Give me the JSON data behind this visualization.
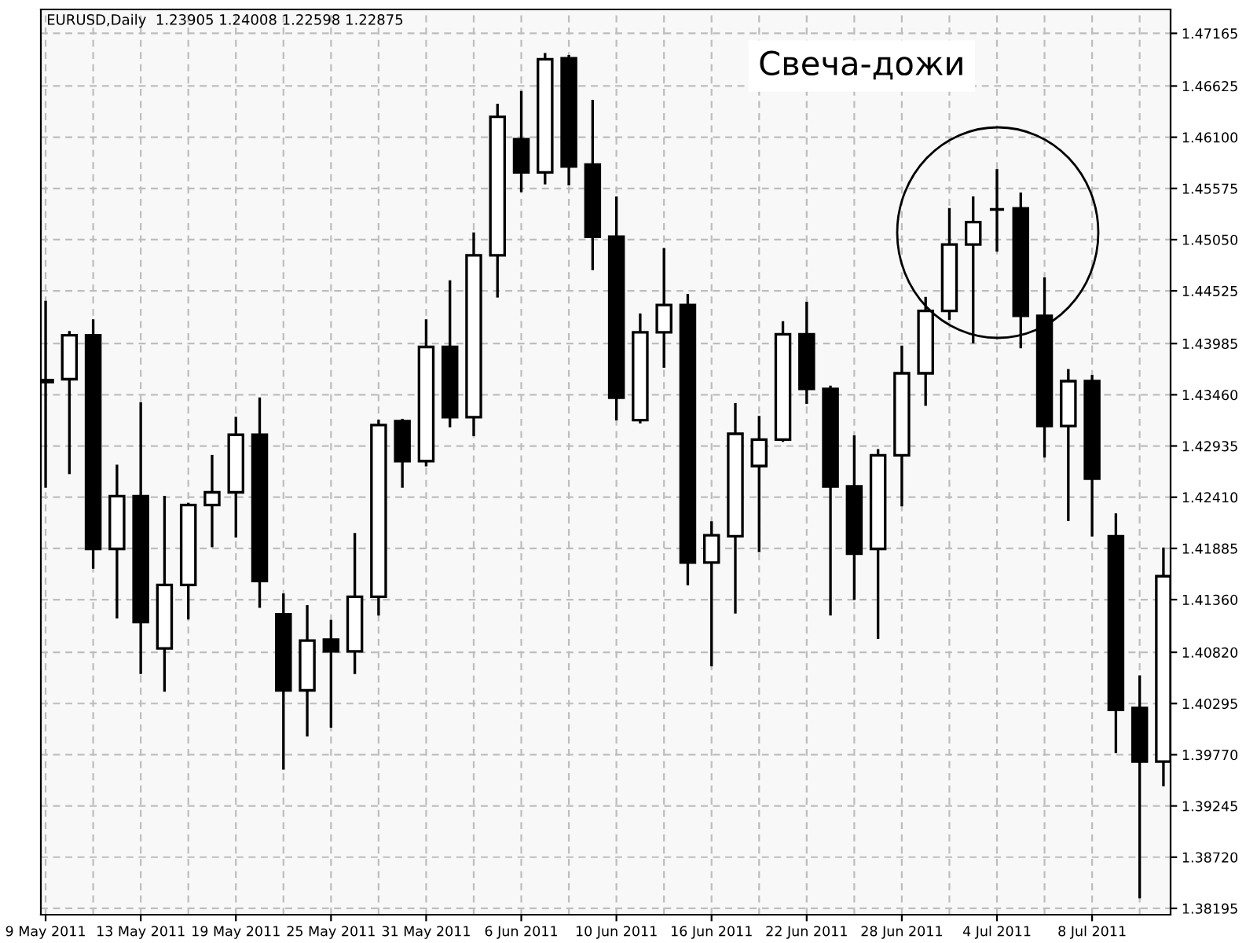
{
  "chart_data": {
    "type": "candlestick",
    "title": "EURUSD,Daily  1.23905 1.24008 1.22598 1.22875",
    "annotations": [
      "Свеча-дожи"
    ],
    "categories": [
      "9 May 2011",
      null,
      null,
      null,
      "13 May 2011",
      null,
      null,
      null,
      "19 May 2011",
      null,
      null,
      null,
      "25 May 2011",
      null,
      null,
      null,
      "31 May 2011",
      null,
      null,
      null,
      "6 Jun 2011",
      null,
      null,
      null,
      "10 Jun 2011",
      null,
      null,
      null,
      "16 Jun 2011",
      null,
      null,
      null,
      "22 Jun 2011",
      null,
      null,
      null,
      "28 Jun 2011",
      null,
      null,
      null,
      "4 Jul 2011",
      null,
      null,
      null,
      "8 Jul 2011",
      null,
      null,
      null
    ],
    "ohlc": [
      [
        1.4359,
        1.4441,
        1.4252,
        1.4361
      ],
      [
        1.4362,
        1.441,
        1.4266,
        1.4407
      ],
      [
        1.4407,
        1.4422,
        1.4169,
        1.4188
      ],
      [
        1.4188,
        1.4273,
        1.4118,
        1.4242
      ],
      [
        1.4242,
        1.4337,
        1.4061,
        1.4113
      ],
      [
        1.4086,
        1.4241,
        1.4043,
        1.4151
      ],
      [
        1.4151,
        1.4234,
        1.4117,
        1.4233
      ],
      [
        1.4233,
        1.4283,
        1.4191,
        1.4246
      ],
      [
        1.4246,
        1.4322,
        1.4201,
        1.4305
      ],
      [
        1.4305,
        1.4342,
        1.4129,
        1.4155
      ],
      [
        1.4121,
        1.4141,
        1.3963,
        1.4043
      ],
      [
        1.4043,
        1.4129,
        1.3997,
        1.4094
      ],
      [
        1.4095,
        1.4114,
        1.4006,
        1.4083
      ],
      [
        1.4083,
        1.4203,
        1.4061,
        1.4139
      ],
      [
        1.4139,
        1.4319,
        1.4121,
        1.4315
      ],
      [
        1.4319,
        1.432,
        1.4252,
        1.4278
      ],
      [
        1.4278,
        1.4422,
        1.4274,
        1.4395
      ],
      [
        1.4395,
        1.4462,
        1.4314,
        1.4323
      ],
      [
        1.4323,
        1.4511,
        1.4305,
        1.4489
      ],
      [
        1.4489,
        1.4643,
        1.4447,
        1.4631
      ],
      [
        1.4608,
        1.4656,
        1.4555,
        1.4574
      ],
      [
        1.4574,
        1.4695,
        1.4563,
        1.469
      ],
      [
        1.4691,
        1.4693,
        1.4562,
        1.458
      ],
      [
        1.4582,
        1.4647,
        1.4475,
        1.4508
      ],
      [
        1.4508,
        1.4548,
        1.4321,
        1.4343
      ],
      [
        1.432,
        1.4428,
        1.4318,
        1.441
      ],
      [
        1.441,
        1.4495,
        1.4375,
        1.4438
      ],
      [
        1.4438,
        1.4448,
        1.4152,
        1.4174
      ],
      [
        1.4174,
        1.4215,
        1.4069,
        1.4202
      ],
      [
        1.4201,
        1.4336,
        1.4123,
        1.4306
      ],
      [
        1.4273,
        1.4323,
        1.4186,
        1.43
      ],
      [
        1.43,
        1.442,
        1.4299,
        1.4408
      ],
      [
        1.4408,
        1.444,
        1.4338,
        1.4352
      ],
      [
        1.4352,
        1.4354,
        1.4121,
        1.4252
      ],
      [
        1.4252,
        1.4303,
        1.4137,
        1.4183
      ],
      [
        1.4188,
        1.4289,
        1.4097,
        1.4284
      ],
      [
        1.4284,
        1.4395,
        1.4233,
        1.4368
      ],
      [
        1.4368,
        1.4445,
        1.4336,
        1.4432
      ],
      [
        1.4432,
        1.4536,
        1.4424,
        1.45
      ],
      [
        1.45,
        1.4548,
        1.44,
        1.4523
      ],
      [
        1.4536,
        1.4576,
        1.4494,
        1.4536
      ],
      [
        1.4537,
        1.4552,
        1.4395,
        1.4427
      ],
      [
        1.4427,
        1.4465,
        1.4283,
        1.4314
      ],
      [
        1.4314,
        1.4371,
        1.4218,
        1.436
      ],
      [
        1.436,
        1.4365,
        1.4202,
        1.426
      ],
      [
        1.4201,
        1.4223,
        1.398,
        1.4023
      ],
      [
        1.4025,
        1.4057,
        1.3831,
        1.397
      ],
      [
        1.397,
        1.4188,
        1.3946,
        1.416
      ]
    ],
    "ylim": [
      1.3813,
      1.4741
    ],
    "yticks": [
      {
        "value": 1.47165,
        "label": "1.47165"
      },
      {
        "value": 1.46625,
        "label": "1.46625"
      },
      {
        "value": 1.461,
        "label": "1.46100"
      },
      {
        "value": 1.45575,
        "label": "1.45575"
      },
      {
        "value": 1.4505,
        "label": "1.45050"
      },
      {
        "value": 1.44525,
        "label": "1.44525"
      },
      {
        "value": 1.43985,
        "label": "1.43985"
      },
      {
        "value": 1.4346,
        "label": "1.43460"
      },
      {
        "value": 1.42935,
        "label": "1.42935"
      },
      {
        "value": 1.4241,
        "label": "1.42410"
      },
      {
        "value": 1.41885,
        "label": "1.41885"
      },
      {
        "value": 1.4136,
        "label": "1.41360"
      },
      {
        "value": 1.4082,
        "label": "1.40820"
      },
      {
        "value": 1.40295,
        "label": "1.40295"
      },
      {
        "value": 1.3977,
        "label": "1.39770"
      },
      {
        "value": 1.39245,
        "label": "1.39245"
      },
      {
        "value": 1.3872,
        "label": "1.38720"
      },
      {
        "value": 1.38195,
        "label": "1.38195"
      }
    ],
    "grid": true,
    "legend": false
  }
}
